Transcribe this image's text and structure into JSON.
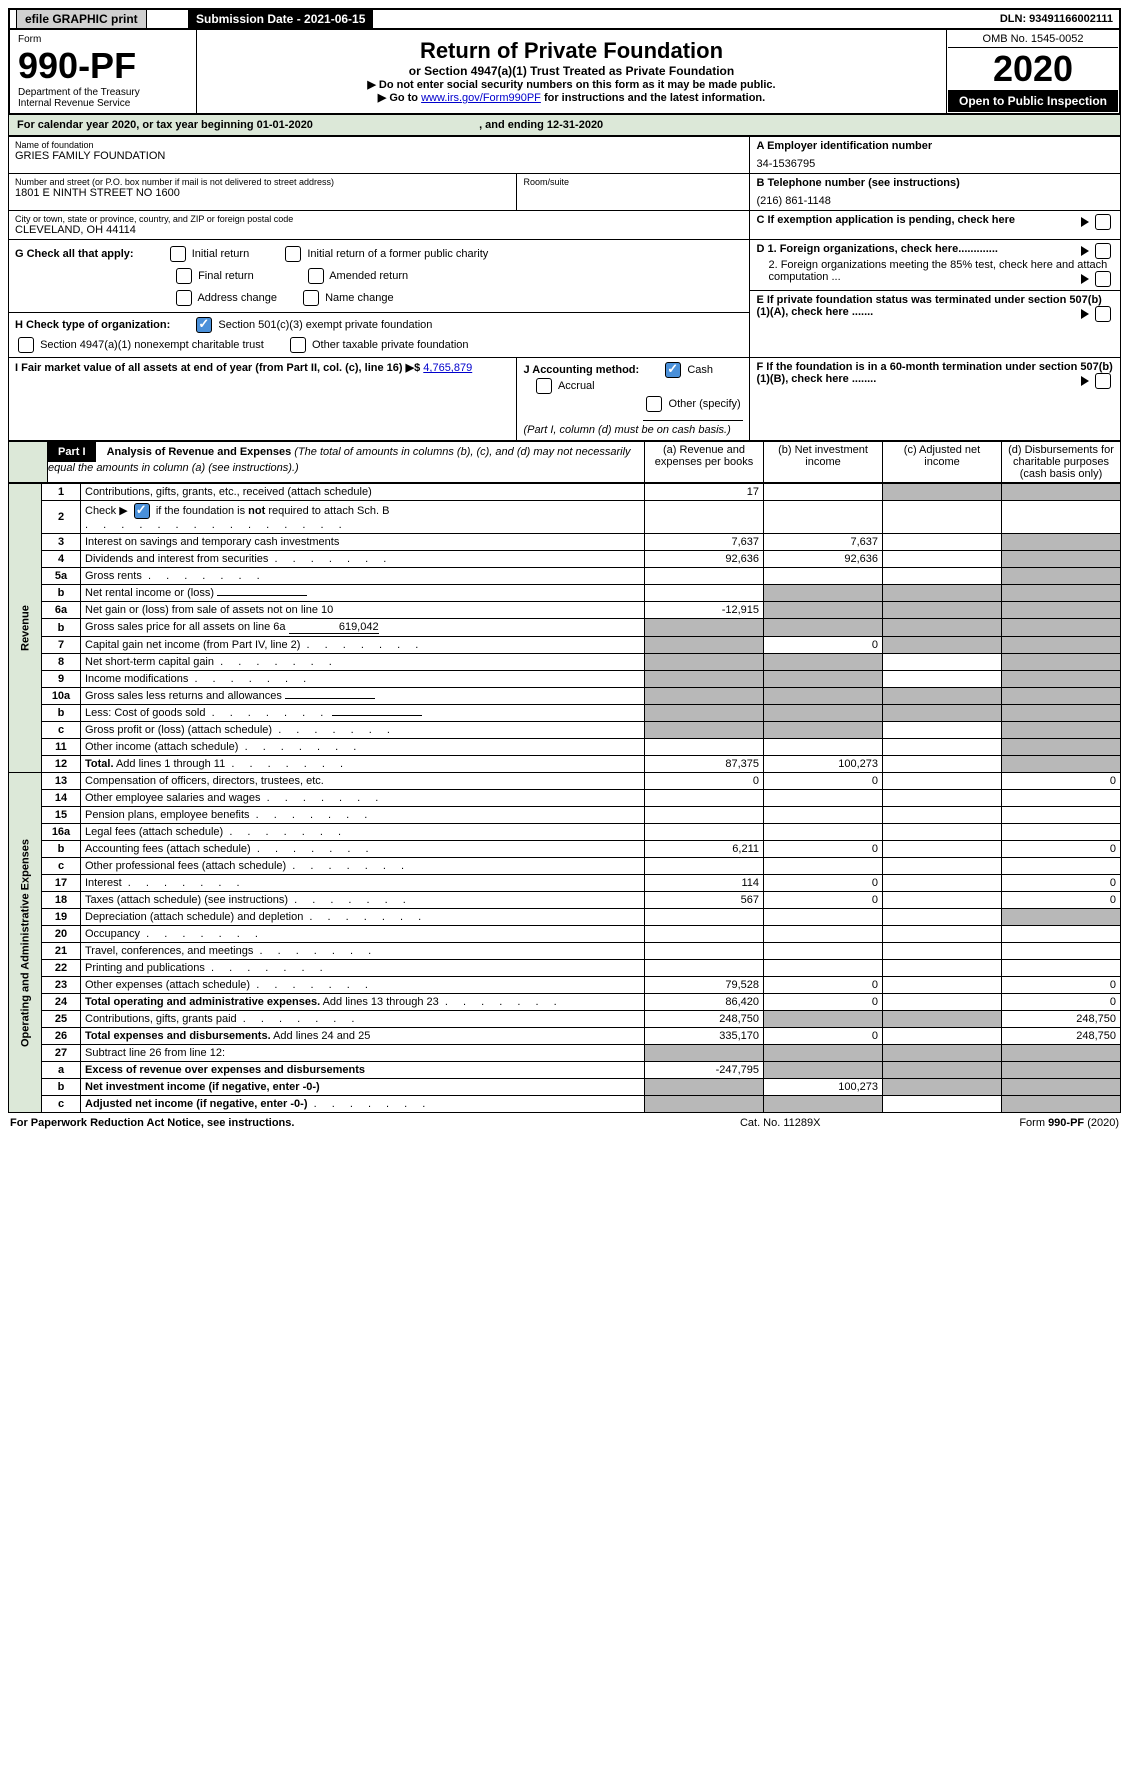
{
  "topbar": {
    "efile": "efile GRAPHIC print",
    "submission_label": "Submission Date - 2021-06-15",
    "dln_label": "DLN: 93491166002111"
  },
  "header": {
    "form_word": "Form",
    "form_number": "990-PF",
    "dept": "Department of the Treasury",
    "irs": "Internal Revenue Service",
    "title": "Return of Private Foundation",
    "subtitle": "or Section 4947(a)(1) Trust Treated as Private Foundation",
    "instr1": "▶ Do not enter social security numbers on this form as it may be made public.",
    "instr2_pre": "▶ Go to ",
    "instr2_link": "www.irs.gov/Form990PF",
    "instr2_post": " for instructions and the latest information.",
    "omb": "OMB No. 1545-0052",
    "year": "2020",
    "open": "Open to Public Inspection"
  },
  "calyear": {
    "text_pre": "For calendar year 2020, or tax year beginning ",
    "begin": "01-01-2020",
    "mid": " , and ending ",
    "end": "12-31-2020"
  },
  "entity": {
    "name_label": "Name of foundation",
    "name": "GRIES FAMILY FOUNDATION",
    "addr_label": "Number and street (or P.O. box number if mail is not delivered to street address)",
    "addr": "1801 E NINTH STREET NO 1600",
    "room_label": "Room/suite",
    "city_label": "City or town, state or province, country, and ZIP or foreign postal code",
    "city": "CLEVELAND, OH  44114",
    "ein_label": "A Employer identification number",
    "ein": "34-1536795",
    "phone_label": "B Telephone number (see instructions)",
    "phone": "(216) 861-1148",
    "c_label": "C  If exemption application is pending, check here"
  },
  "checks": {
    "g_label": "G Check all that apply:",
    "g1": "Initial return",
    "g2": "Initial return of a former public charity",
    "g3": "Final return",
    "g4": "Amended return",
    "g5": "Address change",
    "g6": "Name change",
    "h_label": "H Check type of organization:",
    "h1": "Section 501(c)(3) exempt private foundation",
    "h2": "Section 4947(a)(1) nonexempt charitable trust",
    "h3": "Other taxable private foundation",
    "i_label": "I Fair market value of all assets at end of year (from Part II, col. (c), line 16) ▶$ ",
    "i_val": "4,765,879",
    "j_label": "J Accounting method:",
    "j1": "Cash",
    "j2": "Accrual",
    "j3": "Other (specify)",
    "j_note": "(Part I, column (d) must be on cash basis.)",
    "d1": "D 1. Foreign organizations, check here.............",
    "d2": "2. Foreign organizations meeting the 85% test, check here and attach computation ...",
    "e": "E  If private foundation status was terminated under section 507(b)(1)(A), check here .......",
    "f": "F  If the foundation is in a 60-month termination under section 507(b)(1)(B), check here ........"
  },
  "part1": {
    "label": "Part I",
    "title": "Analysis of Revenue and Expenses",
    "note": "(The total of amounts in columns (b), (c), and (d) may not necessarily equal the amounts in column (a) (see instructions).)",
    "col_a": "(a) Revenue and expenses per books",
    "col_b": "(b) Net investment income",
    "col_c": "(c) Adjusted net income",
    "col_d": "(d) Disbursements for charitable purposes (cash basis only)"
  },
  "revenue_label": "Revenue",
  "expense_label": "Operating and Administrative Expenses",
  "rows": [
    {
      "n": "1",
      "d": "g",
      "a": "17",
      "b": "",
      "c": "g"
    },
    {
      "n": "2",
      "d": "",
      "a": "",
      "b": "",
      "c": "",
      "dots": true,
      "nb": true
    },
    {
      "n": "3",
      "d": "g",
      "a": "7,637",
      "b": "7,637",
      "c": ""
    },
    {
      "n": "4",
      "d": "g",
      "a": "92,636",
      "b": "92,636",
      "c": "",
      "dots": true
    },
    {
      "n": "5a",
      "d": "g",
      "a": "",
      "b": "",
      "c": "",
      "dots": true
    },
    {
      "n": "b",
      "d": "g",
      "a": "",
      "b": "g",
      "c": "g",
      "inline": true
    },
    {
      "n": "6a",
      "d": "g",
      "a": "-12,915",
      "b": "g",
      "c": "g"
    },
    {
      "n": "b",
      "d": "g",
      "a": "g",
      "b": "g",
      "c": "g",
      "inline": true,
      "ival": "619,042"
    },
    {
      "n": "7",
      "d": "g",
      "a": "g",
      "b": "0",
      "c": "g",
      "dots": true
    },
    {
      "n": "8",
      "d": "g",
      "a": "g",
      "b": "g",
      "c": "",
      "dots": true
    },
    {
      "n": "9",
      "d": "g",
      "a": "g",
      "b": "g",
      "c": "",
      "dots": true
    },
    {
      "n": "10a",
      "d": "g",
      "a": "g",
      "b": "g",
      "c": "g",
      "inline": true
    },
    {
      "n": "b",
      "d": "g",
      "a": "g",
      "b": "g",
      "c": "g",
      "inline": true,
      "dots": true
    },
    {
      "n": "c",
      "d": "g",
      "a": "g",
      "b": "g",
      "c": "",
      "dots": true
    },
    {
      "n": "11",
      "d": "g",
      "a": "",
      "b": "",
      "c": "",
      "dots": true
    },
    {
      "n": "12",
      "d": "g",
      "a": "87,375",
      "b": "100,273",
      "c": "",
      "dots": true,
      "bold": true
    }
  ],
  "exp_rows": [
    {
      "n": "13",
      "d": "0",
      "a": "0",
      "b": "0",
      "c": ""
    },
    {
      "n": "14",
      "d": "",
      "a": "",
      "b": "",
      "c": "",
      "dots": true
    },
    {
      "n": "15",
      "d": "",
      "a": "",
      "b": "",
      "c": "",
      "dots": true
    },
    {
      "n": "16a",
      "d": "",
      "a": "",
      "b": "",
      "c": "",
      "dots": true
    },
    {
      "n": "b",
      "d": "0",
      "a": "6,211",
      "b": "0",
      "c": "",
      "dots": true
    },
    {
      "n": "c",
      "d": "",
      "a": "",
      "b": "",
      "c": "",
      "dots": true
    },
    {
      "n": "17",
      "d": "0",
      "a": "114",
      "b": "0",
      "c": "",
      "dots": true
    },
    {
      "n": "18",
      "d": "0",
      "a": "567",
      "b": "0",
      "c": "",
      "dots": true
    },
    {
      "n": "19",
      "d": "g",
      "a": "",
      "b": "",
      "c": "",
      "dots": true
    },
    {
      "n": "20",
      "d": "",
      "a": "",
      "b": "",
      "c": "",
      "dots": true
    },
    {
      "n": "21",
      "d": "",
      "a": "",
      "b": "",
      "c": "",
      "dots": true
    },
    {
      "n": "22",
      "d": "",
      "a": "",
      "b": "",
      "c": "",
      "dots": true
    },
    {
      "n": "23",
      "d": "0",
      "a": "79,528",
      "b": "0",
      "c": "",
      "dots": true
    },
    {
      "n": "24",
      "d": "0",
      "a": "86,420",
      "b": "0",
      "c": "",
      "dots": true,
      "bold": true
    },
    {
      "n": "25",
      "d": "248,750",
      "a": "248,750",
      "b": "g",
      "c": "g",
      "dots": true
    },
    {
      "n": "26",
      "d": "248,750",
      "a": "335,170",
      "b": "0",
      "c": "",
      "bold": true
    },
    {
      "n": "27",
      "d": "g",
      "a": "g",
      "b": "g",
      "c": "g"
    },
    {
      "n": "a",
      "d": "g",
      "a": "-247,795",
      "b": "g",
      "c": "g",
      "bold": true
    },
    {
      "n": "b",
      "d": "g",
      "a": "g",
      "b": "100,273",
      "c": "g",
      "bold": true
    },
    {
      "n": "c",
      "d": "g",
      "a": "g",
      "b": "g",
      "c": "",
      "bold": true,
      "dots": true
    }
  ],
  "footer": {
    "left": "For Paperwork Reduction Act Notice, see instructions.",
    "mid": "Cat. No. 11289X",
    "right": "Form 990-PF (2020)"
  }
}
